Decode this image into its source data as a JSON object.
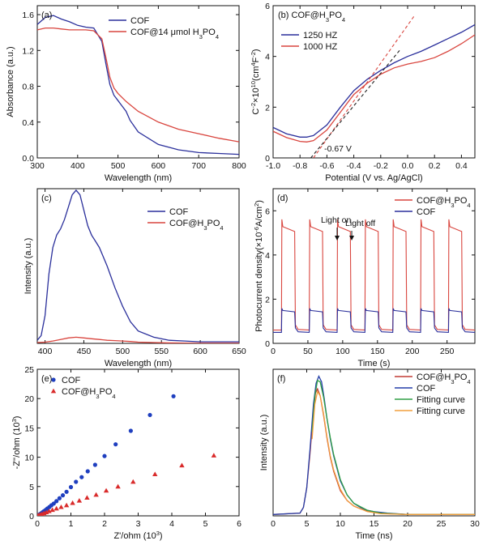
{
  "chart_data": [
    {
      "id": "a",
      "type": "line",
      "panel_tag": "(a)",
      "xlabel": "Wavelength (nm)",
      "ylabel": "Absorbance (a.u.)",
      "xlim": [
        300,
        800
      ],
      "ylim": [
        0,
        1.7
      ],
      "xticks": [
        300,
        400,
        500,
        600,
        700,
        800
      ],
      "yticks": [
        0.0,
        0.4,
        0.8,
        1.2,
        1.6
      ],
      "ytick_labels": [
        "0.0",
        "0.4",
        "0.8",
        "1.2",
        "1.6"
      ],
      "legend_position": "top-right",
      "series": [
        {
          "name": "COF",
          "color": "#2a2f9b",
          "x": [
            300,
            320,
            340,
            360,
            380,
            400,
            420,
            440,
            460,
            470,
            480,
            490,
            500,
            510,
            520,
            530,
            550,
            600,
            650,
            700,
            750,
            800
          ],
          "y": [
            1.49,
            1.57,
            1.59,
            1.55,
            1.52,
            1.48,
            1.46,
            1.45,
            1.3,
            1.05,
            0.82,
            0.7,
            0.64,
            0.58,
            0.52,
            0.42,
            0.29,
            0.15,
            0.09,
            0.06,
            0.05,
            0.04
          ]
        },
        {
          "name": "COF@14 μmol H3PO4",
          "color": "#d9453e",
          "x": [
            300,
            320,
            340,
            360,
            380,
            400,
            420,
            440,
            460,
            470,
            480,
            490,
            500,
            520,
            550,
            600,
            650,
            700,
            750,
            800
          ],
          "y": [
            1.43,
            1.45,
            1.45,
            1.44,
            1.43,
            1.43,
            1.43,
            1.42,
            1.33,
            1.12,
            0.9,
            0.78,
            0.72,
            0.63,
            0.52,
            0.4,
            0.32,
            0.27,
            0.22,
            0.18
          ]
        }
      ]
    },
    {
      "id": "b",
      "type": "line",
      "panel_tag": "(b) COF@H3PO4",
      "xlabel": "Potential (V vs. Ag/AgCl)",
      "ylabel": "C-2×1010(cm4F-2)",
      "xlim": [
        -1.0,
        0.5
      ],
      "ylim": [
        0,
        6
      ],
      "xticks": [
        -1.0,
        -0.8,
        -0.6,
        -0.4,
        -0.2,
        0.0,
        0.2,
        0.4
      ],
      "xtick_labels": [
        "-1.0",
        "-0.8",
        "-0.6",
        "-0.4",
        "-0.2",
        "0.0",
        "0.2",
        "0.4"
      ],
      "yticks": [
        0,
        2,
        4,
        6
      ],
      "legend_position": "top-left",
      "annotation": "-0.67 V",
      "series": [
        {
          "name": "1250 HZ",
          "color": "#2a2f9b",
          "x": [
            -1.0,
            -0.9,
            -0.8,
            -0.75,
            -0.7,
            -0.6,
            -0.5,
            -0.4,
            -0.3,
            -0.2,
            -0.1,
            0.0,
            0.1,
            0.2,
            0.3,
            0.4,
            0.5
          ],
          "y": [
            1.2,
            0.95,
            0.82,
            0.82,
            0.88,
            1.3,
            2.0,
            2.65,
            3.1,
            3.45,
            3.75,
            4.0,
            4.2,
            4.45,
            4.7,
            4.95,
            5.25
          ]
        },
        {
          "name": "1000 HZ",
          "color": "#d9453e",
          "x": [
            -1.0,
            -0.9,
            -0.8,
            -0.75,
            -0.7,
            -0.6,
            -0.5,
            -0.4,
            -0.3,
            -0.2,
            -0.1,
            0.0,
            0.1,
            0.2,
            0.3,
            0.4,
            0.5
          ],
          "y": [
            1.05,
            0.8,
            0.65,
            0.63,
            0.68,
            1.1,
            1.8,
            2.5,
            2.95,
            3.3,
            3.55,
            3.7,
            3.8,
            3.95,
            4.2,
            4.5,
            4.85
          ]
        },
        {
          "name": "",
          "color": "#d9453e",
          "dashed": true,
          "x": [
            -0.7,
            0.05
          ],
          "y": [
            0.0,
            5.6
          ]
        },
        {
          "name": "",
          "color": "#222222",
          "dashed": true,
          "x": [
            -0.72,
            -0.05
          ],
          "y": [
            0.0,
            4.3
          ]
        }
      ]
    },
    {
      "id": "c",
      "type": "line",
      "panel_tag": "(c)",
      "xlabel": "Wavelength (nm)",
      "ylabel": "Intensity (a.u.)",
      "xlim": [
        390,
        650
      ],
      "ylim": [
        0,
        1.0
      ],
      "xticks": [
        400,
        450,
        500,
        550,
        600,
        650
      ],
      "yticks": [],
      "legend_position": "top-right",
      "series": [
        {
          "name": "COF",
          "color": "#2a2f9b",
          "x": [
            390,
            395,
            400,
            405,
            410,
            415,
            420,
            425,
            430,
            435,
            440,
            445,
            450,
            455,
            460,
            465,
            470,
            480,
            490,
            500,
            510,
            520,
            540,
            560,
            580,
            600,
            620,
            650
          ],
          "y": [
            0.02,
            0.05,
            0.18,
            0.45,
            0.62,
            0.7,
            0.74,
            0.8,
            0.88,
            0.96,
            0.99,
            0.96,
            0.86,
            0.76,
            0.7,
            0.66,
            0.62,
            0.5,
            0.36,
            0.24,
            0.14,
            0.08,
            0.04,
            0.02,
            0.015,
            0.01,
            0.01,
            0.01
          ]
        },
        {
          "name": "COF@H3PO4",
          "color": "#d9453e",
          "x": [
            390,
            400,
            410,
            420,
            430,
            440,
            450,
            460,
            470,
            480,
            490,
            500,
            510,
            520,
            540,
            560,
            580,
            600,
            620,
            650
          ],
          "y": [
            0.005,
            0.008,
            0.015,
            0.025,
            0.035,
            0.04,
            0.035,
            0.03,
            0.025,
            0.02,
            0.018,
            0.015,
            0.012,
            0.008,
            0.005,
            0.003,
            0.002,
            0.001,
            0.001,
            0.001
          ]
        }
      ]
    },
    {
      "id": "d",
      "type": "line",
      "panel_tag": "(d)",
      "xlabel": "Time (s)",
      "ylabel": "Photocurrent density(×10-6A/cm2)",
      "xlim": [
        0,
        290
      ],
      "ylim": [
        0,
        7
      ],
      "xticks": [
        0,
        50,
        100,
        150,
        200,
        250
      ],
      "yticks": [
        0,
        2,
        4,
        6
      ],
      "legend_position": "top-right",
      "annotations": [
        "Light on",
        "Light off"
      ],
      "light_on_times": [
        12,
        52,
        92,
        132,
        172,
        212,
        252
      ],
      "pulse_width": 20,
      "series": [
        {
          "name": "COF@H3PO4",
          "color": "#d9453e",
          "base": 0.6,
          "peak": 5.5
        },
        {
          "name": "COF",
          "color": "#2a2f9b",
          "base": 0.5,
          "peak": 1.55
        }
      ]
    },
    {
      "id": "e",
      "type": "scatter",
      "panel_tag": "(e)",
      "xlabel": "Z'/ohm (103)",
      "ylabel": "-Z''/ohm (103)",
      "xlim": [
        0,
        6
      ],
      "ylim": [
        0,
        25
      ],
      "xticks": [
        0,
        1,
        2,
        3,
        4,
        5,
        6
      ],
      "yticks": [
        0,
        5,
        10,
        15,
        20,
        25
      ],
      "legend_position": "top-left",
      "series": [
        {
          "name": "COF",
          "color": "#1f3fbf",
          "marker": "circle",
          "x": [
            0.02,
            0.05,
            0.08,
            0.12,
            0.16,
            0.2,
            0.25,
            0.3,
            0.36,
            0.42,
            0.49,
            0.57,
            0.66,
            0.76,
            0.87,
            1.0,
            1.15,
            1.32,
            1.5,
            1.72,
            2.0,
            2.33,
            2.78,
            3.35,
            4.05
          ],
          "y": [
            0.05,
            0.15,
            0.3,
            0.45,
            0.62,
            0.8,
            1.0,
            1.25,
            1.5,
            1.8,
            2.1,
            2.5,
            3.0,
            3.5,
            4.1,
            4.9,
            5.8,
            6.6,
            7.6,
            8.7,
            10.2,
            12.2,
            14.5,
            17.2,
            20.4
          ]
        },
        {
          "name": "COF@H3PO4",
          "color": "#d92b2b",
          "marker": "triangle",
          "x": [
            0.02,
            0.05,
            0.09,
            0.14,
            0.2,
            0.27,
            0.35,
            0.45,
            0.57,
            0.71,
            0.87,
            1.05,
            1.25,
            1.48,
            1.75,
            2.05,
            2.4,
            2.85,
            3.5,
            4.3,
            5.25
          ],
          "y": [
            0.03,
            0.1,
            0.2,
            0.3,
            0.45,
            0.6,
            0.8,
            1.0,
            1.25,
            1.5,
            1.8,
            2.2,
            2.6,
            3.1,
            3.6,
            4.3,
            5.0,
            5.8,
            7.1,
            8.6,
            10.3
          ]
        }
      ]
    },
    {
      "id": "f",
      "type": "line",
      "panel_tag": "(f)",
      "xlabel": "Time (ns)",
      "ylabel": "Intensity (a.u.)",
      "xlim": [
        0,
        30
      ],
      "ylim": [
        0,
        1.05
      ],
      "xticks": [
        0,
        5,
        10,
        15,
        20,
        25,
        30
      ],
      "yticks": [],
      "legend_position": "top-right",
      "series": [
        {
          "name": "COF@H3PO4",
          "color": "#c23b35",
          "x": [
            0,
            4,
            4.5,
            5,
            5.5,
            6,
            6.3,
            6.6,
            7,
            7.5,
            8,
            8.5,
            9,
            10,
            11,
            12,
            13,
            14,
            15,
            17,
            20,
            25,
            30
          ],
          "y": [
            0.01,
            0.02,
            0.06,
            0.2,
            0.45,
            0.75,
            0.88,
            0.91,
            0.86,
            0.72,
            0.56,
            0.42,
            0.32,
            0.18,
            0.11,
            0.07,
            0.05,
            0.035,
            0.025,
            0.015,
            0.01,
            0.01,
            0.01
          ]
        },
        {
          "name": "COF",
          "color": "#243ea8",
          "x": [
            0,
            4,
            4.5,
            5,
            5.5,
            6,
            6.4,
            6.8,
            7.2,
            7.6,
            8,
            8.5,
            9,
            10,
            11,
            12,
            13,
            14,
            15,
            17,
            20,
            25,
            30
          ],
          "y": [
            0.01,
            0.02,
            0.06,
            0.2,
            0.48,
            0.8,
            0.95,
            1.0,
            0.96,
            0.84,
            0.7,
            0.55,
            0.43,
            0.25,
            0.15,
            0.09,
            0.06,
            0.04,
            0.03,
            0.02,
            0.01,
            0.01,
            0.01
          ]
        },
        {
          "name": "Fitting curve",
          "color": "#2f9e44",
          "x": [
            5.8,
            6.2,
            6.6,
            7,
            7.5,
            8,
            8.5,
            9,
            10,
            11,
            12,
            14,
            16,
            20,
            25,
            30
          ],
          "y": [
            0.6,
            0.86,
            0.97,
            0.96,
            0.85,
            0.7,
            0.56,
            0.44,
            0.26,
            0.15,
            0.09,
            0.04,
            0.02,
            0.01,
            0.01,
            0.01
          ]
        },
        {
          "name": "Fitting curve",
          "color": "#f29f3d",
          "x": [
            5.8,
            6.2,
            6.6,
            7,
            7.5,
            8,
            8.5,
            9,
            10,
            11,
            12,
            14,
            16,
            20,
            25,
            30
          ],
          "y": [
            0.55,
            0.8,
            0.89,
            0.86,
            0.73,
            0.57,
            0.43,
            0.33,
            0.19,
            0.11,
            0.07,
            0.03,
            0.015,
            0.01,
            0.01,
            0.01
          ]
        }
      ]
    }
  ]
}
